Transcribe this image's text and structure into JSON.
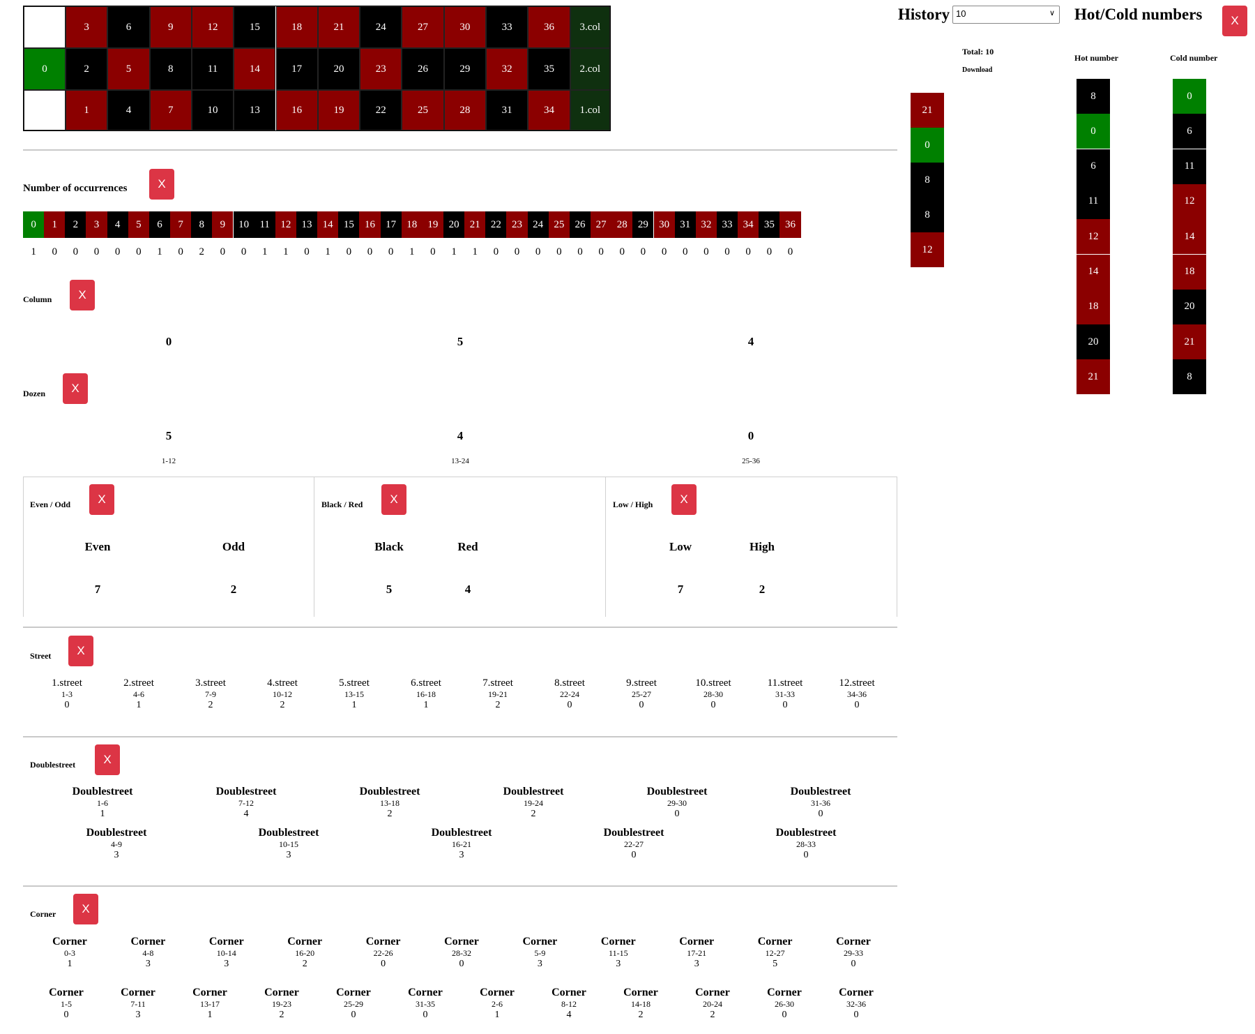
{
  "table": {
    "rows": [
      [
        {
          "n": "3",
          "c": "red"
        },
        {
          "n": "6",
          "c": "black"
        },
        {
          "n": "9",
          "c": "red"
        },
        {
          "n": "12",
          "c": "red"
        },
        {
          "n": "15",
          "c": "black"
        },
        {
          "n": "18",
          "c": "red"
        },
        {
          "n": "21",
          "c": "red"
        },
        {
          "n": "24",
          "c": "black"
        },
        {
          "n": "27",
          "c": "red"
        },
        {
          "n": "30",
          "c": "red"
        },
        {
          "n": "33",
          "c": "black"
        },
        {
          "n": "36",
          "c": "red"
        }
      ],
      [
        {
          "n": "2",
          "c": "black"
        },
        {
          "n": "5",
          "c": "red"
        },
        {
          "n": "8",
          "c": "black"
        },
        {
          "n": "11",
          "c": "black"
        },
        {
          "n": "14",
          "c": "red"
        },
        {
          "n": "17",
          "c": "black"
        },
        {
          "n": "20",
          "c": "black"
        },
        {
          "n": "23",
          "c": "red"
        },
        {
          "n": "26",
          "c": "black"
        },
        {
          "n": "29",
          "c": "black"
        },
        {
          "n": "32",
          "c": "red"
        },
        {
          "n": "35",
          "c": "black"
        }
      ],
      [
        {
          "n": "1",
          "c": "red"
        },
        {
          "n": "4",
          "c": "black"
        },
        {
          "n": "7",
          "c": "red"
        },
        {
          "n": "10",
          "c": "black"
        },
        {
          "n": "13",
          "c": "black"
        },
        {
          "n": "16",
          "c": "red"
        },
        {
          "n": "19",
          "c": "red"
        },
        {
          "n": "22",
          "c": "black"
        },
        {
          "n": "25",
          "c": "red"
        },
        {
          "n": "28",
          "c": "red"
        },
        {
          "n": "31",
          "c": "black"
        },
        {
          "n": "34",
          "c": "red"
        }
      ]
    ],
    "zero": "0",
    "cols": [
      "3.col",
      "2.col",
      "1.col"
    ]
  },
  "close_label": "X",
  "occurrences": {
    "title": "Number of occurrences",
    "numbers": [
      {
        "n": "0",
        "c": "green"
      },
      {
        "n": "1",
        "c": "red"
      },
      {
        "n": "2",
        "c": "black"
      },
      {
        "n": "3",
        "c": "red"
      },
      {
        "n": "4",
        "c": "black"
      },
      {
        "n": "5",
        "c": "red"
      },
      {
        "n": "6",
        "c": "black"
      },
      {
        "n": "7",
        "c": "red"
      },
      {
        "n": "8",
        "c": "black"
      },
      {
        "n": "9",
        "c": "red"
      },
      {
        "n": "10",
        "c": "black"
      },
      {
        "n": "11",
        "c": "black"
      },
      {
        "n": "12",
        "c": "red"
      },
      {
        "n": "13",
        "c": "black"
      },
      {
        "n": "14",
        "c": "red"
      },
      {
        "n": "15",
        "c": "black"
      },
      {
        "n": "16",
        "c": "red"
      },
      {
        "n": "17",
        "c": "black"
      },
      {
        "n": "18",
        "c": "red"
      },
      {
        "n": "19",
        "c": "red"
      },
      {
        "n": "20",
        "c": "black"
      },
      {
        "n": "21",
        "c": "red"
      },
      {
        "n": "22",
        "c": "black"
      },
      {
        "n": "23",
        "c": "red"
      },
      {
        "n": "24",
        "c": "black"
      },
      {
        "n": "25",
        "c": "red"
      },
      {
        "n": "26",
        "c": "black"
      },
      {
        "n": "27",
        "c": "red"
      },
      {
        "n": "28",
        "c": "red"
      },
      {
        "n": "29",
        "c": "black"
      },
      {
        "n": "30",
        "c": "red"
      },
      {
        "n": "31",
        "c": "black"
      },
      {
        "n": "32",
        "c": "red"
      },
      {
        "n": "33",
        "c": "black"
      },
      {
        "n": "34",
        "c": "red"
      },
      {
        "n": "35",
        "c": "black"
      },
      {
        "n": "36",
        "c": "red"
      }
    ],
    "counts": [
      "1",
      "0",
      "0",
      "0",
      "0",
      "0",
      "1",
      "0",
      "2",
      "0",
      "0",
      "1",
      "1",
      "0",
      "1",
      "0",
      "0",
      "0",
      "1",
      "0",
      "1",
      "1",
      "0",
      "0",
      "0",
      "0",
      "0",
      "0",
      "0",
      "0",
      "0",
      "0",
      "0",
      "0",
      "0",
      "0",
      "0"
    ]
  },
  "column": {
    "title": "Column",
    "values": [
      "0",
      "5",
      "4"
    ]
  },
  "dozen": {
    "title": "Dozen",
    "values": [
      "5",
      "4",
      "0"
    ],
    "labels": [
      "1-12",
      "13-24",
      "25-36"
    ]
  },
  "even_odd": {
    "title": "Even / Odd",
    "a": "Even",
    "b": "Odd",
    "av": "7",
    "bv": "2"
  },
  "black_red": {
    "title": "Black / Red",
    "a": "Black",
    "b": "Red",
    "av": "5",
    "bv": "4"
  },
  "low_high": {
    "title": "Low / High",
    "a": "Low",
    "b": "High",
    "av": "7",
    "bv": "2"
  },
  "street": {
    "title": "Street",
    "items": [
      {
        "name": "1.street",
        "range": "1-3",
        "value": "0"
      },
      {
        "name": "2.street",
        "range": "4-6",
        "value": "1"
      },
      {
        "name": "3.street",
        "range": "7-9",
        "value": "2"
      },
      {
        "name": "4.street",
        "range": "10-12",
        "value": "2"
      },
      {
        "name": "5.street",
        "range": "13-15",
        "value": "1"
      },
      {
        "name": "6.street",
        "range": "16-18",
        "value": "1"
      },
      {
        "name": "7.street",
        "range": "19-21",
        "value": "2"
      },
      {
        "name": "8.street",
        "range": "22-24",
        "value": "0"
      },
      {
        "name": "9.street",
        "range": "25-27",
        "value": "0"
      },
      {
        "name": "10.street",
        "range": "28-30",
        "value": "0"
      },
      {
        "name": "11.street",
        "range": "31-33",
        "value": "0"
      },
      {
        "name": "12.street",
        "range": "34-36",
        "value": "0"
      }
    ]
  },
  "doublestreet": {
    "title": "Doublestreet",
    "row1": [
      {
        "name": "Doublestreet",
        "range": "1-6",
        "value": "1"
      },
      {
        "name": "Doublestreet",
        "range": "7-12",
        "value": "4"
      },
      {
        "name": "Doublestreet",
        "range": "13-18",
        "value": "2"
      },
      {
        "name": "Doublestreet",
        "range": "19-24",
        "value": "2"
      },
      {
        "name": "Doublestreet",
        "range": "29-30",
        "value": "0"
      },
      {
        "name": "Doublestreet",
        "range": "31-36",
        "value": "0"
      }
    ],
    "row2": [
      {
        "name": "Doublestreet",
        "range": "4-9",
        "value": "3"
      },
      {
        "name": "Doublestreet",
        "range": "10-15",
        "value": "3"
      },
      {
        "name": "Doublestreet",
        "range": "16-21",
        "value": "3"
      },
      {
        "name": "Doublestreet",
        "range": "22-27",
        "value": "0"
      },
      {
        "name": "Doublestreet",
        "range": "28-33",
        "value": "0"
      }
    ]
  },
  "corner": {
    "title": "Corner",
    "row1": [
      {
        "name": "Corner",
        "range": "0-3",
        "value": "1"
      },
      {
        "name": "Corner",
        "range": "4-8",
        "value": "3"
      },
      {
        "name": "Corner",
        "range": "10-14",
        "value": "3"
      },
      {
        "name": "Corner",
        "range": "16-20",
        "value": "2"
      },
      {
        "name": "Corner",
        "range": "22-26",
        "value": "0"
      },
      {
        "name": "Corner",
        "range": "28-32",
        "value": "0"
      },
      {
        "name": "Corner",
        "range": "5-9",
        "value": "3"
      },
      {
        "name": "Corner",
        "range": "11-15",
        "value": "3"
      },
      {
        "name": "Corner",
        "range": "17-21",
        "value": "3"
      },
      {
        "name": "Corner",
        "range": "12-27",
        "value": "5"
      },
      {
        "name": "Corner",
        "range": "29-33",
        "value": "0"
      }
    ],
    "row2": [
      {
        "name": "Corner",
        "range": "1-5",
        "value": "0"
      },
      {
        "name": "Corner",
        "range": "7-11",
        "value": "3"
      },
      {
        "name": "Corner",
        "range": "13-17",
        "value": "1"
      },
      {
        "name": "Corner",
        "range": "19-23",
        "value": "2"
      },
      {
        "name": "Corner",
        "range": "25-29",
        "value": "0"
      },
      {
        "name": "Corner",
        "range": "31-35",
        "value": "0"
      },
      {
        "name": "Corner",
        "range": "2-6",
        "value": "1"
      },
      {
        "name": "Corner",
        "range": "8-12",
        "value": "4"
      },
      {
        "name": "Corner",
        "range": "14-18",
        "value": "2"
      },
      {
        "name": "Corner",
        "range": "20-24",
        "value": "2"
      },
      {
        "name": "Corner",
        "range": "26-30",
        "value": "0"
      },
      {
        "name": "Corner",
        "range": "32-36",
        "value": "0"
      }
    ]
  },
  "history": {
    "title": "History",
    "select_value": "10",
    "total": "Total: 10",
    "download": "Download",
    "numbers": [
      {
        "n": "21",
        "c": "red"
      },
      {
        "n": "0",
        "c": "green"
      },
      {
        "n": "8",
        "c": "black"
      },
      {
        "n": "8",
        "c": "black"
      },
      {
        "n": "12",
        "c": "red"
      }
    ]
  },
  "hotcold": {
    "title": "Hot/Cold numbers",
    "hot_label": "Hot number",
    "cold_label": "Cold number",
    "hot": [
      {
        "n": "8",
        "c": "black"
      },
      {
        "n": "0",
        "c": "green"
      },
      {
        "n": "6",
        "c": "black"
      },
      {
        "n": "11",
        "c": "black"
      },
      {
        "n": "12",
        "c": "red"
      },
      {
        "n": "14",
        "c": "red"
      },
      {
        "n": "18",
        "c": "red"
      },
      {
        "n": "20",
        "c": "black"
      },
      {
        "n": "21",
        "c": "red"
      }
    ],
    "cold": [
      {
        "n": "0",
        "c": "green"
      },
      {
        "n": "6",
        "c": "black"
      },
      {
        "n": "11",
        "c": "black"
      },
      {
        "n": "12",
        "c": "red"
      },
      {
        "n": "14",
        "c": "red"
      },
      {
        "n": "18",
        "c": "red"
      },
      {
        "n": "20",
        "c": "black"
      },
      {
        "n": "21",
        "c": "red"
      },
      {
        "n": "8",
        "c": "black"
      }
    ]
  }
}
